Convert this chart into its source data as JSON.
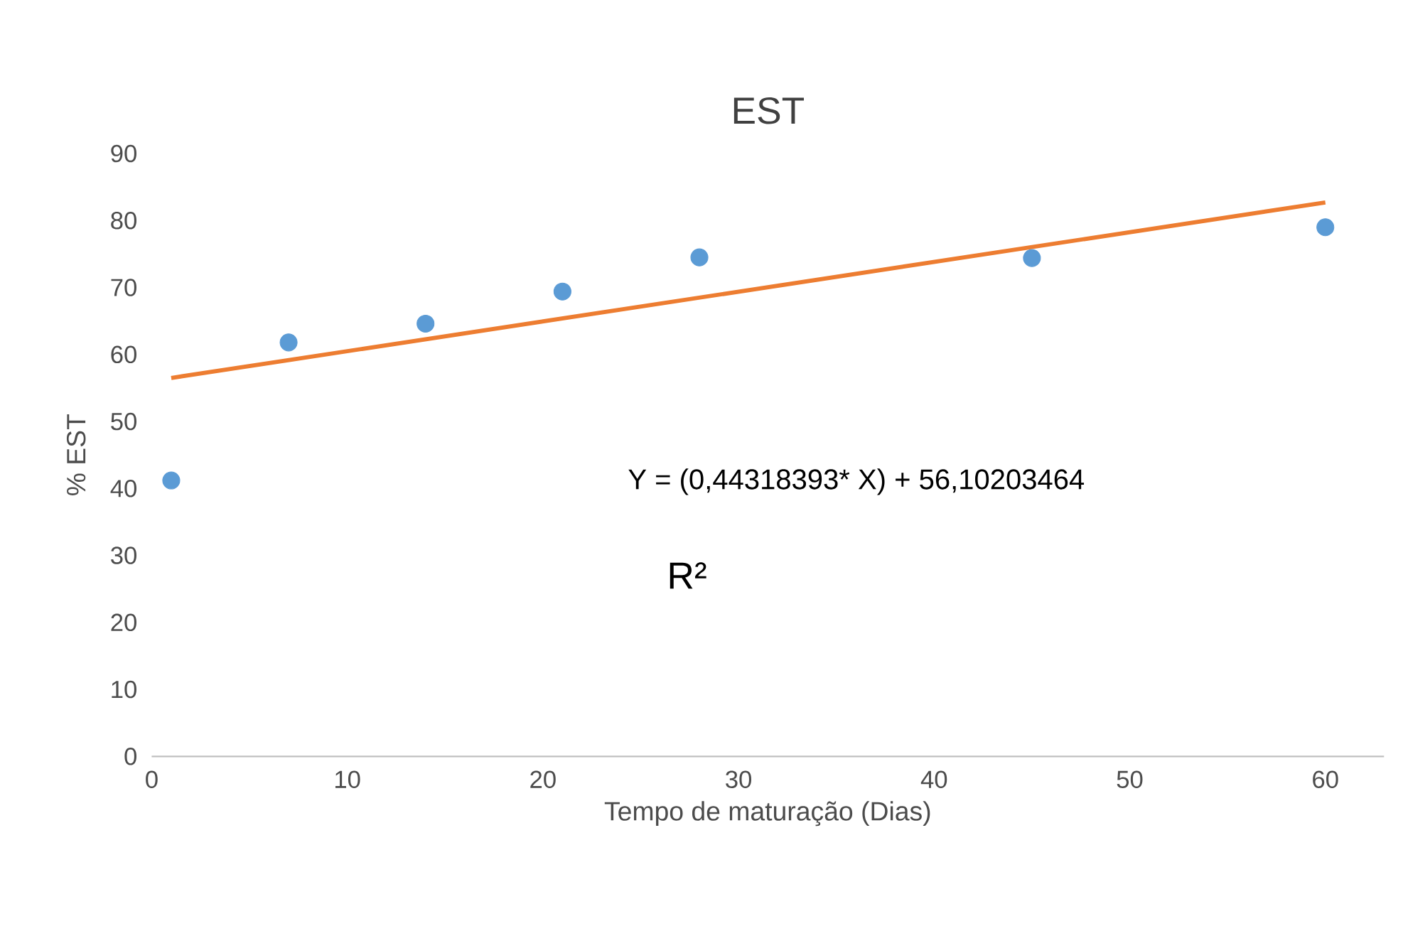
{
  "chart_data": {
    "type": "scatter",
    "title": "EST",
    "xlabel": "Tempo de maturação (Dias)",
    "ylabel": "% EST",
    "xlim": [
      0,
      63
    ],
    "xticks": [
      0,
      10,
      20,
      30,
      40,
      50,
      60
    ],
    "ylim": [
      0,
      90
    ],
    "yticks": [
      0,
      10,
      20,
      30,
      40,
      50,
      60,
      70,
      80,
      90
    ],
    "grid": false,
    "x": [
      1,
      7,
      14,
      21,
      28,
      45,
      60
    ],
    "series": [
      {
        "color": "#5b9bd5",
        "marker": "circle",
        "values": [
          41.2,
          61.8,
          64.6,
          69.4,
          74.5,
          74.4,
          79.0
        ]
      },
      {
        "type": "line",
        "color": "#ed7d31",
        "marker": "none",
        "x": [
          1,
          60
        ],
        "values": [
          56.5,
          82.7
        ]
      }
    ],
    "annotations": [
      "Y = (0,44318393* X) + 56,10203464",
      "R²"
    ]
  }
}
